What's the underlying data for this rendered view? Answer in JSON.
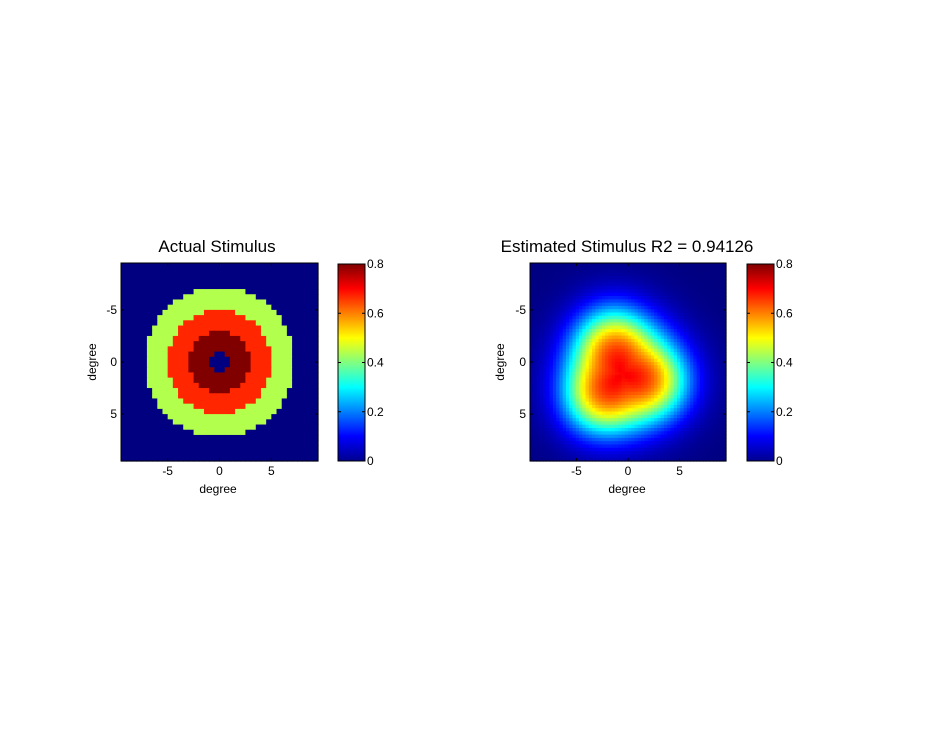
{
  "chart_data": [
    {
      "type": "heatmap",
      "title": "Actual Stimulus",
      "xlabel": "degree",
      "ylabel": "degree",
      "xlim": [
        -9.5,
        9.5
      ],
      "ylim": [
        -9.5,
        9.5
      ],
      "y_reversed": true,
      "xticks": [
        -5,
        0,
        5
      ],
      "yticks": [
        -5,
        0,
        5
      ],
      "colormap": "jet",
      "clim": [
        0,
        0.8
      ],
      "colorbar_ticks": [
        0,
        0.2,
        0.4,
        0.6,
        0.8
      ],
      "grid": false,
      "grid_size": 38,
      "pattern": "concentric rings",
      "rings": [
        {
          "r_max": 1.0,
          "value": 0.0
        },
        {
          "r_max": 3.0,
          "value": 0.8
        },
        {
          "r_max": 5.0,
          "value": 0.67
        },
        {
          "r_max": 7.2,
          "value": 0.44
        },
        {
          "r_max": 99,
          "value": 0.0
        }
      ]
    },
    {
      "type": "heatmap",
      "title": "Estimated Stimulus R2 = 0.94126",
      "xlabel": "degree",
      "ylabel": "degree",
      "xlim": [
        -9.5,
        9.5
      ],
      "ylim": [
        -9.5,
        9.5
      ],
      "y_reversed": true,
      "xticks": [
        -5,
        0,
        5
      ],
      "yticks": [
        -5,
        0,
        5
      ],
      "colormap": "jet",
      "clim": [
        0,
        0.8
      ],
      "colorbar_ticks": [
        0,
        0.2,
        0.4,
        0.6,
        0.8
      ],
      "grid": false,
      "grid_size": 60,
      "pattern": "smooth blob",
      "peak_value": 0.72,
      "peak_center": [
        -0.6,
        1.2
      ],
      "blob": {
        "base_radius": 5.0,
        "edge_width": 1.3,
        "lobe_amplitude": 0.45,
        "lobes": 3,
        "lobe_phase": -0.7
      }
    }
  ]
}
